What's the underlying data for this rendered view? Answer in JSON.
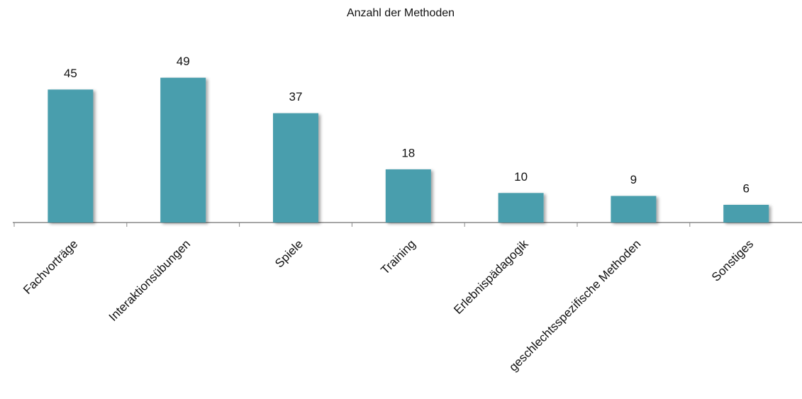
{
  "chart_data": {
    "type": "bar",
    "title": "Anzahl der Methoden",
    "categories": [
      "Fachvorträge",
      "Interaktionsübungen",
      "Spiele",
      "Training",
      "Erlebnispädagogik",
      "geschlechtsspezifische Methoden",
      "Sonstiges"
    ],
    "values": [
      45,
      49,
      37,
      18,
      10,
      9,
      6
    ],
    "color": "#4a9ead"
  }
}
